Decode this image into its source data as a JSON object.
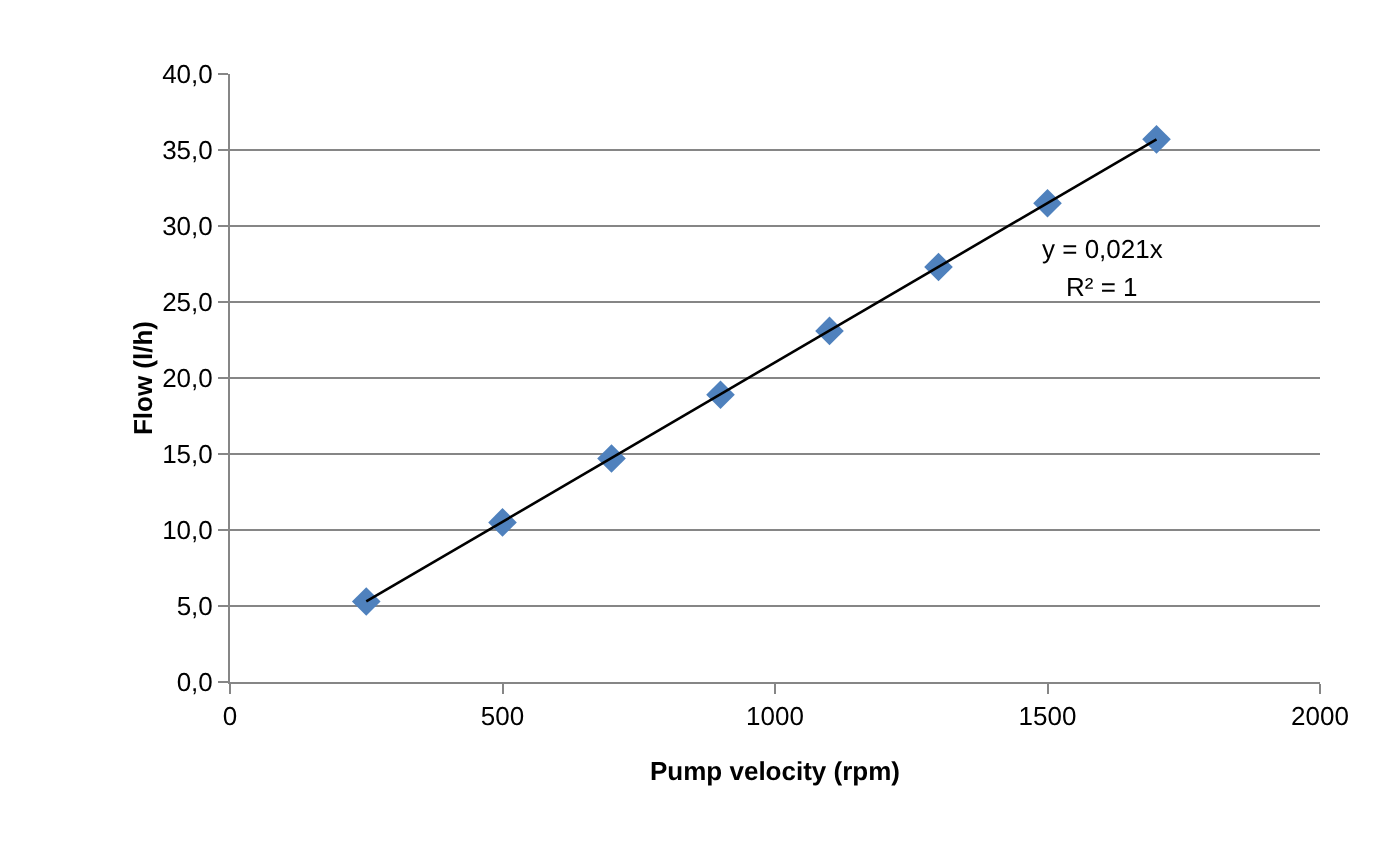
{
  "chart_data": {
    "type": "scatter",
    "xlabel": "Pump velocity (rpm)",
    "ylabel": "Flow (l/h)",
    "x": [
      250,
      500,
      700,
      900,
      1100,
      1300,
      1500,
      1700
    ],
    "series": [
      {
        "color": "#4f81bd",
        "marker": "diamond",
        "values": [
          5.3,
          10.5,
          14.7,
          18.9,
          23.1,
          27.3,
          31.5,
          35.7
        ]
      },
      {
        "type": "line",
        "color": "#000000",
        "marker": "none",
        "line_style": "solid",
        "x": [
          250,
          1700
        ],
        "values": [
          5.3,
          35.7
        ]
      }
    ],
    "annotations": [
      "y = 0,021x",
      "R² = 1"
    ],
    "xlim": [
      0,
      2000
    ],
    "xticks": [
      0,
      500,
      1000,
      1500,
      2000
    ],
    "ylim": [
      0,
      40
    ],
    "yticks": [
      {
        "value": 0,
        "label": "0,0"
      },
      {
        "value": 5,
        "label": "5,0"
      },
      {
        "value": 10,
        "label": "10,0"
      },
      {
        "value": 15,
        "label": "15,0"
      },
      {
        "value": 20,
        "label": "20,0"
      },
      {
        "value": 25,
        "label": "25,0"
      },
      {
        "value": 30,
        "label": "30,0"
      },
      {
        "value": 35,
        "label": "35,0"
      },
      {
        "value": 40,
        "label": "40,0"
      }
    ],
    "grid": "y"
  }
}
